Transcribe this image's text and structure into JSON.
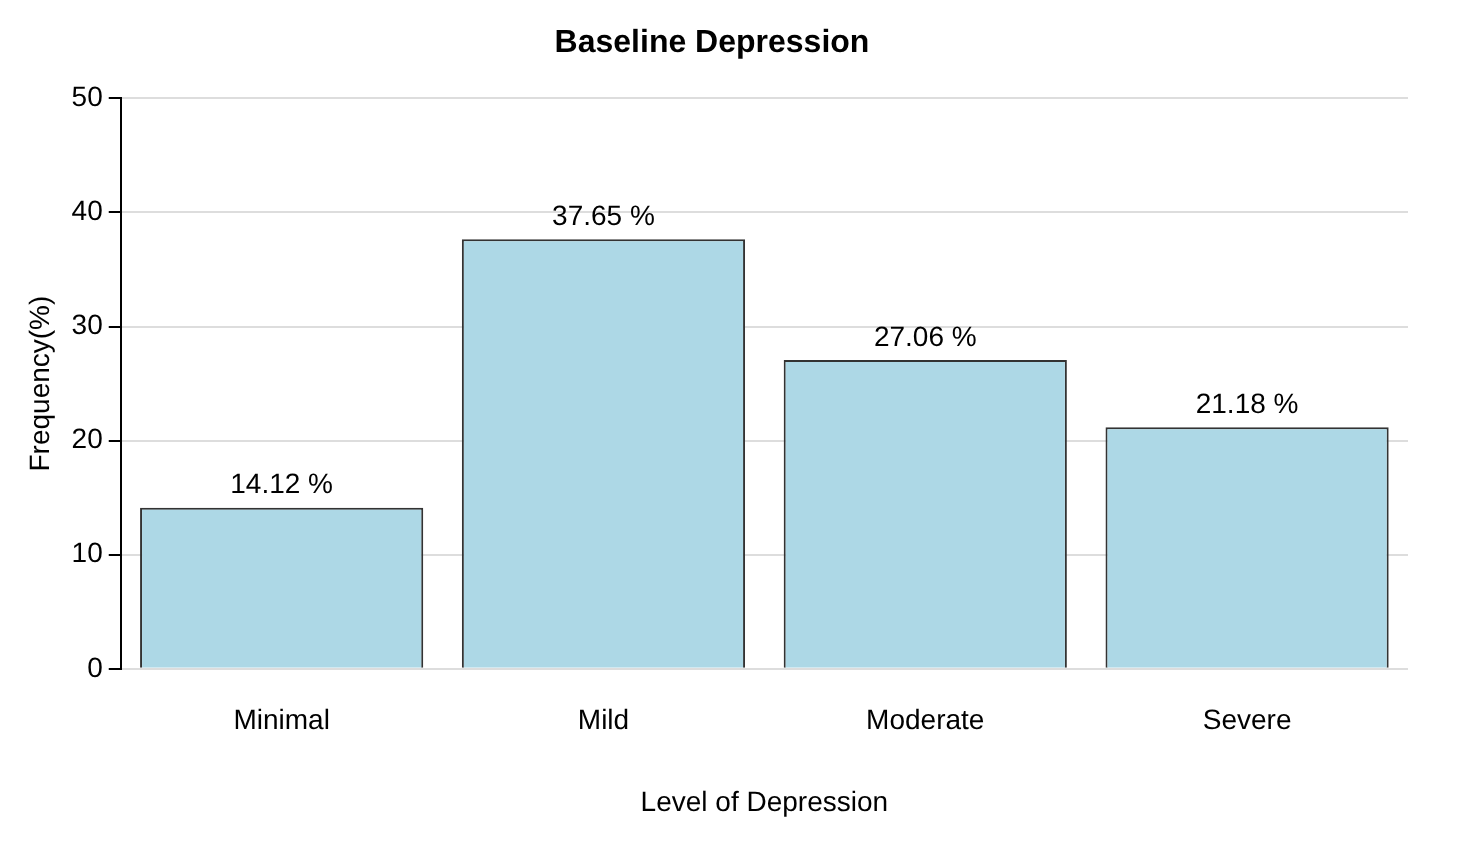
{
  "chart_data": {
    "type": "bar",
    "title": "Baseline Depression",
    "xlabel": "Level of Depression",
    "ylabel": "Frequency(%)",
    "categories": [
      "Minimal",
      "Mild",
      "Moderate",
      "Severe"
    ],
    "values": [
      14.12,
      37.65,
      27.06,
      21.18
    ],
    "color": "#add8e6",
    "value_labels": [
      "14.12 %",
      "37.65 %",
      "27.06 %",
      "21.18 %"
    ],
    "ylim": [
      0,
      50
    ],
    "yticks": [
      0,
      10,
      20,
      30,
      40,
      50
    ],
    "grid": "y",
    "legend": false
  }
}
